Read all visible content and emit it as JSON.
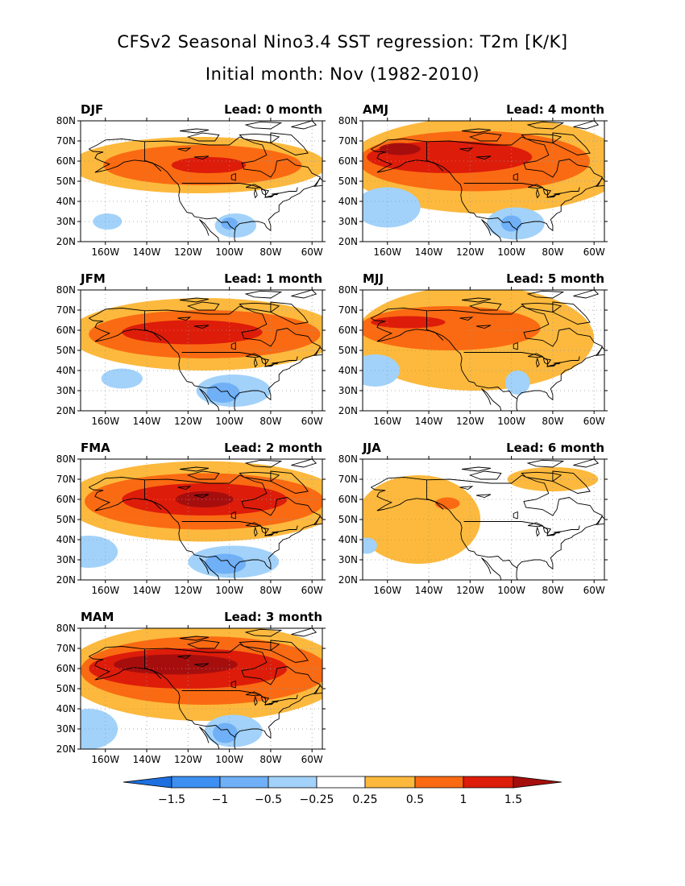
{
  "title_line1": "CFSv2 Seasonal Nino3.4 SST regression: T2m [K/K]",
  "title_line2": "Initial month: Nov (1982-2010)",
  "chart_data": [
    {
      "type": "heatmap",
      "season": "DJF",
      "lead": "Lead: 0 month",
      "x_ticks": [
        "160W",
        "140W",
        "120W",
        "100W",
        "80W",
        "60W"
      ],
      "y_ticks": [
        "20N",
        "30N",
        "40N",
        "50N",
        "60N",
        "70N",
        "80N"
      ],
      "xlim": [
        -172,
        -55
      ],
      "ylim": [
        20,
        80
      ],
      "anomalies": [
        {
          "level": 0.25,
          "lon": -115,
          "lat": 58,
          "rx": 62,
          "ry": 14
        },
        {
          "level": 0.5,
          "lon": -113,
          "lat": 58,
          "rx": 48,
          "ry": 10
        },
        {
          "level": 1.0,
          "lon": -110,
          "lat": 58,
          "rx": 18,
          "ry": 4
        },
        {
          "level": -0.25,
          "lon": -159,
          "lat": 30,
          "rx": 7,
          "ry": 4
        },
        {
          "level": -0.25,
          "lon": -97,
          "lat": 28,
          "rx": 10,
          "ry": 6
        },
        {
          "level": -0.5,
          "lon": -100,
          "lat": 29,
          "rx": 4,
          "ry": 3
        }
      ]
    },
    {
      "type": "heatmap",
      "season": "JFM",
      "lead": "Lead: 1 month",
      "x_ticks": [
        "160W",
        "140W",
        "120W",
        "100W",
        "80W",
        "60W"
      ],
      "y_ticks": [
        "20N",
        "30N",
        "40N",
        "50N",
        "60N",
        "70N",
        "80N"
      ],
      "xlim": [
        -172,
        -55
      ],
      "ylim": [
        20,
        80
      ],
      "anomalies": [
        {
          "level": 0.25,
          "lon": -112,
          "lat": 58,
          "rx": 66,
          "ry": 18
        },
        {
          "level": 0.5,
          "lon": -112,
          "lat": 58,
          "rx": 56,
          "ry": 12
        },
        {
          "level": 1.0,
          "lon": -118,
          "lat": 59,
          "rx": 34,
          "ry": 6
        },
        {
          "level": -0.25,
          "lon": -152,
          "lat": 36,
          "rx": 10,
          "ry": 5
        },
        {
          "level": -0.25,
          "lon": -98,
          "lat": 30,
          "rx": 18,
          "ry": 8
        },
        {
          "level": -0.5,
          "lon": -103,
          "lat": 29,
          "rx": 8,
          "ry": 5
        }
      ]
    },
    {
      "type": "heatmap",
      "season": "FMA",
      "lead": "Lead: 2 month",
      "x_ticks": [
        "160W",
        "140W",
        "120W",
        "100W",
        "80W",
        "60W"
      ],
      "y_ticks": [
        "20N",
        "30N",
        "40N",
        "50N",
        "60N",
        "70N",
        "80N"
      ],
      "xlim": [
        -172,
        -55
      ],
      "ylim": [
        20,
        80
      ],
      "anomalies": [
        {
          "level": 0.25,
          "lon": -112,
          "lat": 59,
          "rx": 68,
          "ry": 20
        },
        {
          "level": 0.5,
          "lon": -112,
          "lat": 59,
          "rx": 58,
          "ry": 14
        },
        {
          "level": 1.0,
          "lon": -112,
          "lat": 60,
          "rx": 40,
          "ry": 8
        },
        {
          "level": 1.5,
          "lon": -112,
          "lat": 60,
          "rx": 14,
          "ry": 4
        },
        {
          "level": -0.25,
          "lon": -168,
          "lat": 34,
          "rx": 14,
          "ry": 8
        },
        {
          "level": -0.25,
          "lon": -98,
          "lat": 29,
          "rx": 22,
          "ry": 8
        },
        {
          "level": -0.5,
          "lon": -102,
          "lat": 28,
          "rx": 10,
          "ry": 5
        }
      ]
    },
    {
      "type": "heatmap",
      "season": "MAM",
      "lead": "Lead: 3 month",
      "x_ticks": [
        "160W",
        "140W",
        "120W",
        "100W",
        "80W",
        "60W"
      ],
      "y_ticks": [
        "20N",
        "30N",
        "40N",
        "50N",
        "60N",
        "70N",
        "80N"
      ],
      "xlim": [
        -172,
        -55
      ],
      "ylim": [
        20,
        80
      ],
      "anomalies": [
        {
          "level": 0.25,
          "lon": -112,
          "lat": 58,
          "rx": 68,
          "ry": 24
        },
        {
          "level": 0.5,
          "lon": -112,
          "lat": 59,
          "rx": 60,
          "ry": 17
        },
        {
          "level": 1.0,
          "lon": -120,
          "lat": 60,
          "rx": 48,
          "ry": 10
        },
        {
          "level": 1.5,
          "lon": -126,
          "lat": 62,
          "rx": 30,
          "ry": 5
        },
        {
          "level": -0.25,
          "lon": -168,
          "lat": 30,
          "rx": 14,
          "ry": 10
        },
        {
          "level": -0.25,
          "lon": -98,
          "lat": 29,
          "rx": 14,
          "ry": 8
        },
        {
          "level": -0.5,
          "lon": -102,
          "lat": 28,
          "rx": 6,
          "ry": 5
        }
      ]
    },
    {
      "type": "heatmap",
      "season": "AMJ",
      "lead": "Lead: 4 month",
      "x_ticks": [
        "160W",
        "140W",
        "120W",
        "100W",
        "80W",
        "60W"
      ],
      "y_ticks": [
        "20N",
        "30N",
        "40N",
        "50N",
        "60N",
        "70N",
        "80N"
      ],
      "xlim": [
        -172,
        -55
      ],
      "ylim": [
        20,
        80
      ],
      "anomalies": [
        {
          "level": 0.25,
          "lon": -112,
          "lat": 58,
          "rx": 68,
          "ry": 24
        },
        {
          "level": 0.5,
          "lon": -118,
          "lat": 60,
          "rx": 56,
          "ry": 15
        },
        {
          "level": 1.0,
          "lon": -130,
          "lat": 62,
          "rx": 40,
          "ry": 8
        },
        {
          "level": 1.5,
          "lon": -154,
          "lat": 66,
          "rx": 10,
          "ry": 3
        },
        {
          "level": -0.25,
          "lon": -160,
          "lat": 37,
          "rx": 16,
          "ry": 10
        },
        {
          "level": -0.25,
          "lon": -98,
          "lat": 29,
          "rx": 14,
          "ry": 8
        },
        {
          "level": -0.5,
          "lon": -100,
          "lat": 29,
          "rx": 5,
          "ry": 4
        }
      ]
    },
    {
      "type": "heatmap",
      "season": "MJJ",
      "lead": "Lead: 5 month",
      "x_ticks": [
        "160W",
        "140W",
        "120W",
        "100W",
        "80W",
        "60W"
      ],
      "y_ticks": [
        "20N",
        "30N",
        "40N",
        "50N",
        "60N",
        "70N",
        "80N"
      ],
      "xlim": [
        -172,
        -55
      ],
      "ylim": [
        20,
        80
      ],
      "anomalies": [
        {
          "level": 0.25,
          "lon": -118,
          "lat": 56,
          "rx": 58,
          "ry": 26
        },
        {
          "level": 0.5,
          "lon": -130,
          "lat": 61,
          "rx": 44,
          "ry": 11
        },
        {
          "level": 1.0,
          "lon": -150,
          "lat": 64,
          "rx": 18,
          "ry": 3
        },
        {
          "level": -0.25,
          "lon": -166,
          "lat": 40,
          "rx": 12,
          "ry": 8
        },
        {
          "level": -0.25,
          "lon": -97,
          "lat": 34,
          "rx": 6,
          "ry": 6
        }
      ]
    },
    {
      "type": "heatmap",
      "season": "JJA",
      "lead": "Lead: 6 month",
      "x_ticks": [
        "160W",
        "140W",
        "120W",
        "100W",
        "80W",
        "60W"
      ],
      "y_ticks": [
        "20N",
        "30N",
        "40N",
        "50N",
        "60N",
        "70N",
        "80N"
      ],
      "xlim": [
        -172,
        -55
      ],
      "ylim": [
        20,
        80
      ],
      "anomalies": [
        {
          "level": 0.25,
          "lon": -145,
          "lat": 50,
          "rx": 30,
          "ry": 22
        },
        {
          "level": 0.25,
          "lon": -80,
          "lat": 70,
          "rx": 22,
          "ry": 6
        },
        {
          "level": 0.5,
          "lon": -131,
          "lat": 58,
          "rx": 6,
          "ry": 3
        },
        {
          "level": -0.25,
          "lon": -170,
          "lat": 37,
          "rx": 5,
          "ry": 4
        }
      ]
    }
  ],
  "colorbar": {
    "labels": [
      "-1.5",
      "-1",
      "-0.5",
      "-0.25",
      "0.25",
      "0.5",
      "1",
      "1.5"
    ],
    "colors": [
      "#1e6fe0",
      "#3d8ff2",
      "#6fb0f7",
      "#a2d2fa",
      "#ffffff",
      "#fcb93d",
      "#fa6a12",
      "#dd1c0a",
      "#a60e0e"
    ]
  }
}
